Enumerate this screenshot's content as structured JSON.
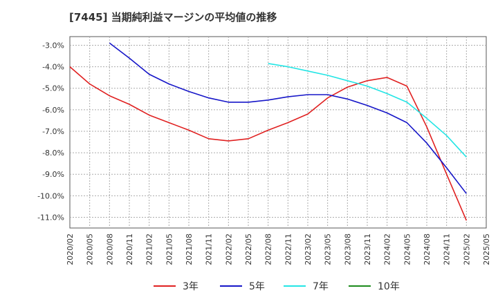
{
  "title": "[7445]  当期純利益マージンの平均値の推移",
  "chart_data": {
    "type": "line",
    "title": "[7445]  当期純利益マージンの平均値の推移",
    "xlabel": "",
    "ylabel": "",
    "x": [
      "2020/02",
      "2020/05",
      "2020/08",
      "2020/11",
      "2021/02",
      "2021/05",
      "2021/08",
      "2021/11",
      "2022/02",
      "2022/05",
      "2022/08",
      "2022/11",
      "2023/02",
      "2023/05",
      "2023/08",
      "2023/11",
      "2024/02",
      "2024/05",
      "2024/08",
      "2024/11",
      "2025/02",
      "2025/05"
    ],
    "y_ticks": [
      "-3.0%",
      "-4.0%",
      "-5.0%",
      "-6.0%",
      "-7.0%",
      "-8.0%",
      "-9.0%",
      "-10.0%",
      "-11.0%"
    ],
    "y_tick_values": [
      -3,
      -4,
      -5,
      -6,
      -7,
      -8,
      -9,
      -10,
      -11
    ],
    "ylim": [
      -11.5,
      -2.6
    ],
    "grid": true,
    "legend_position": "bottom",
    "series": [
      {
        "name": "3年",
        "color": "#e02020",
        "values": [
          -4.0,
          -4.8,
          -5.35,
          -5.75,
          -6.25,
          -6.6,
          -6.95,
          -7.35,
          -7.45,
          -7.35,
          -6.95,
          -6.6,
          -6.2,
          -5.45,
          -4.95,
          -4.65,
          -4.5,
          -4.9,
          -6.8,
          -9.0,
          -11.15,
          null
        ]
      },
      {
        "name": "5年",
        "color": "#1515c8",
        "values": [
          null,
          null,
          -2.9,
          -3.6,
          -4.35,
          -4.8,
          -5.15,
          -5.45,
          -5.65,
          -5.65,
          -5.55,
          -5.4,
          -5.3,
          -5.3,
          -5.5,
          -5.8,
          -6.15,
          -6.6,
          -7.55,
          -8.7,
          -9.9,
          null
        ]
      },
      {
        "name": "7年",
        "color": "#22e5e5",
        "values": [
          null,
          null,
          null,
          null,
          null,
          null,
          null,
          null,
          null,
          null,
          -3.85,
          -4.0,
          -4.2,
          -4.4,
          -4.65,
          -4.9,
          -5.25,
          -5.65,
          -6.4,
          -7.2,
          -8.2,
          null
        ]
      },
      {
        "name": "10年",
        "color": "#1a8a1a",
        "values": [
          null,
          null,
          null,
          null,
          null,
          null,
          null,
          null,
          null,
          null,
          null,
          null,
          null,
          null,
          null,
          null,
          null,
          null,
          null,
          null,
          null,
          null
        ]
      }
    ]
  }
}
